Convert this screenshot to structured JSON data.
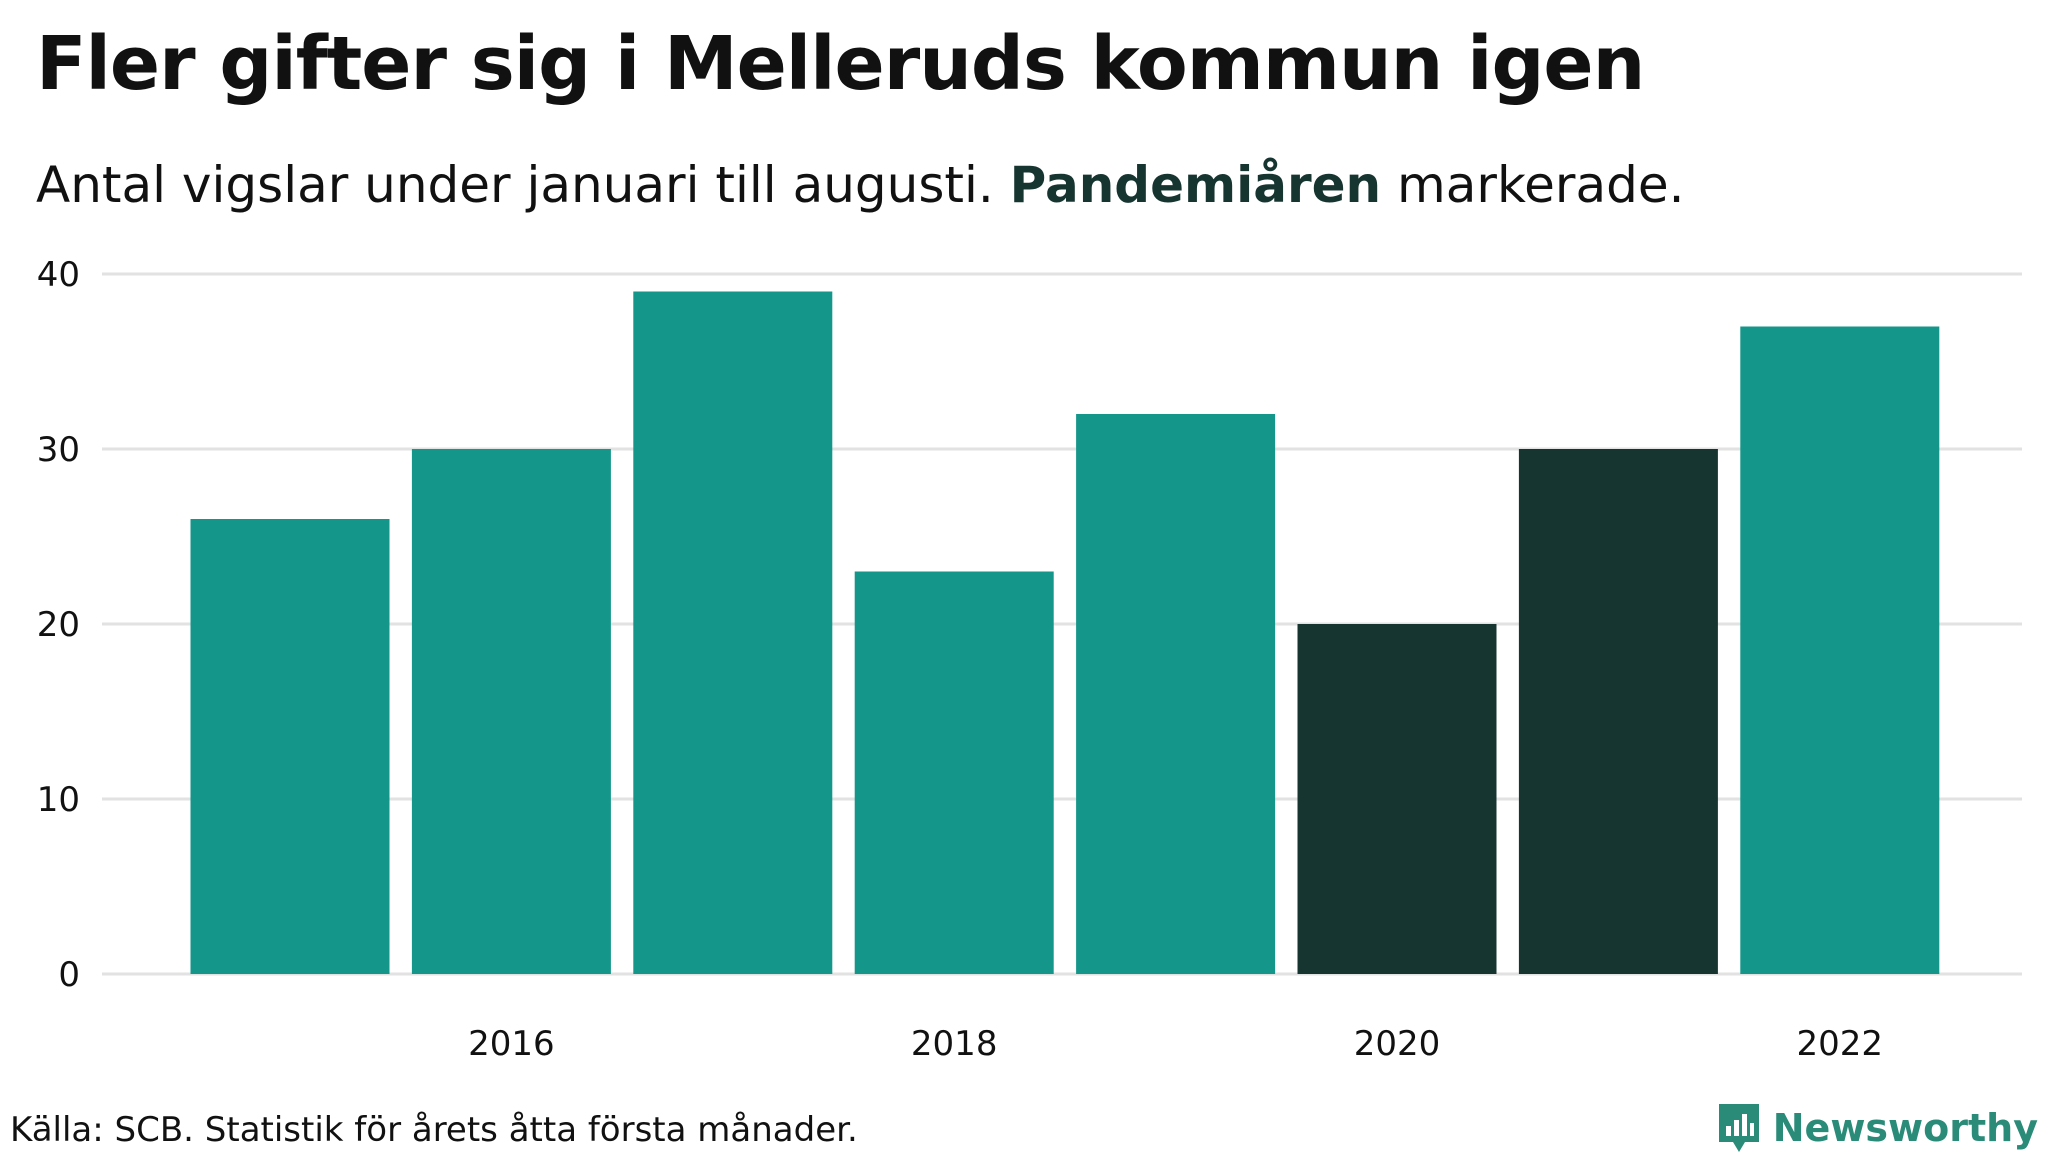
{
  "title": "Fler gifter sig i Melleruds kommun igen",
  "subtitle": {
    "before": "Antal vigslar under januari till augusti. ",
    "highlight": "Pandemiåren",
    "after": " markerade."
  },
  "source": "Källa: SCB. Statistik för årets åtta första månader.",
  "logo": {
    "text": "Newsworthy",
    "icon": "bar-chart-speech-icon"
  },
  "colors": {
    "bar": "#14968A",
    "pandemic_bar": "#173530",
    "highlight_text": "#173530",
    "grid": "#E2E2E2",
    "logo": "#2A8B78"
  },
  "chart_data": {
    "type": "bar",
    "x": [
      2015,
      2016,
      2017,
      2018,
      2019,
      2020,
      2021,
      2022
    ],
    "values": [
      26,
      30,
      39,
      23,
      32,
      20,
      30,
      37
    ],
    "highlighted": [
      false,
      false,
      false,
      false,
      false,
      true,
      true,
      false
    ],
    "x_tick_labels": [
      "2016",
      "2018",
      "2020",
      "2022"
    ],
    "y_tick_labels": [
      "0",
      "10",
      "20",
      "30",
      "40"
    ],
    "ylim": [
      0,
      40
    ],
    "grid": true
  }
}
